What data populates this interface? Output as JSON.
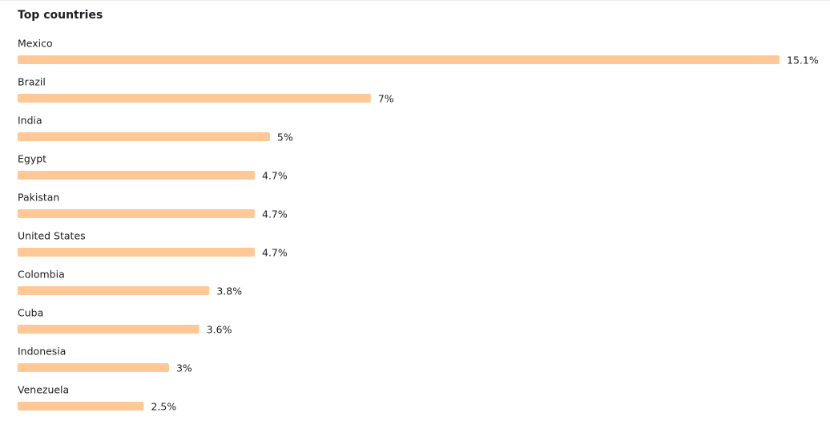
{
  "chart_data": {
    "type": "bar",
    "orientation": "horizontal",
    "title": "Top countries",
    "categories": [
      "Mexico",
      "Brazil",
      "India",
      "Egypt",
      "Pakistan",
      "United States",
      "Colombia",
      "Cuba",
      "Indonesia",
      "Venezuela"
    ],
    "values": [
      15.1,
      7,
      5,
      4.7,
      4.7,
      4.7,
      3.8,
      3.6,
      3,
      2.5
    ],
    "value_labels": [
      "15.1%",
      "7%",
      "5%",
      "4.7%",
      "4.7%",
      "4.7%",
      "3.8%",
      "3.6%",
      "3%",
      "2.5%"
    ],
    "color": "#ffc896"
  }
}
